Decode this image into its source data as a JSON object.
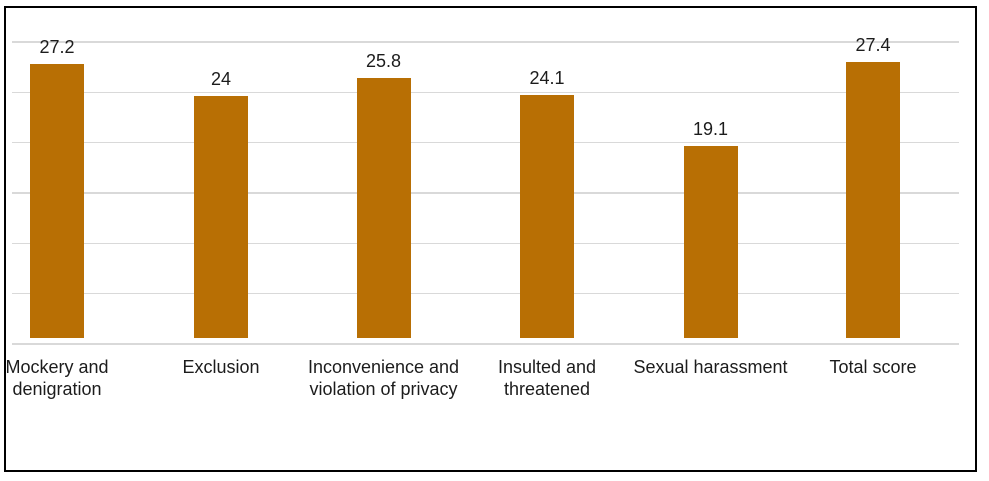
{
  "figure": {
    "background_color": "#FFFFFF",
    "frame_border_color": "#000000",
    "gridline_color": "#D9D9D9",
    "bar_color": "#B86F04",
    "text_color": "#1C1C1C"
  },
  "chart_data": {
    "type": "bar",
    "title": "",
    "xlabel": "",
    "ylabel": "",
    "categories": [
      "Mockery and denigration",
      "Exclusion",
      "Inconvenience and violation of privacy",
      "Insulted and threatened",
      "Sexual harassment",
      "Total score"
    ],
    "values": [
      27.2,
      24,
      25.8,
      24.1,
      19.1,
      27.4
    ],
    "data_labels": [
      "27.2",
      "24",
      "25.8",
      "24.1",
      "19.1",
      "27.4"
    ],
    "ylim": [
      0,
      30
    ],
    "gridline_interval": 5,
    "grid": true,
    "y_axis_tick_labels_visible": false,
    "x_axis_line_visible": false,
    "legend_position": "none"
  }
}
